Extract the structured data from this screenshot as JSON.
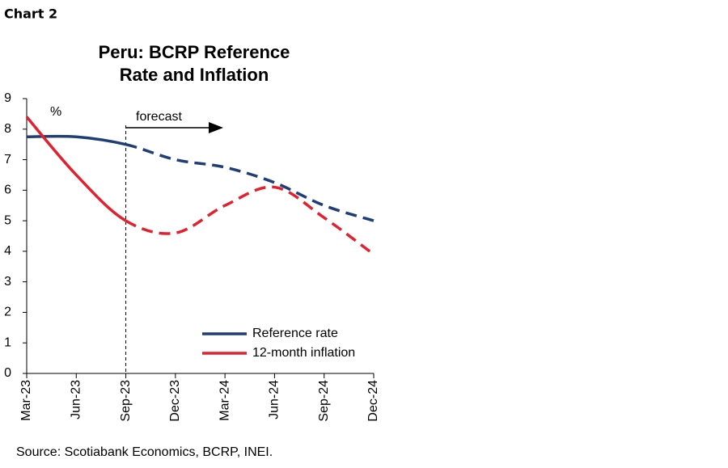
{
  "header": "Chart 2",
  "source": "Source: Scotiabank Economics, BCRP, INEI.",
  "chart_data": {
    "type": "line",
    "title": [
      "Peru: BCRP Reference",
      "Rate and Inflation"
    ],
    "y_unit": "%",
    "forecast_label": "forecast",
    "forecast_start": "Sep-23",
    "categories": [
      "Mar-23",
      "Jun-23",
      "Sep-23",
      "Dec-23",
      "Mar-24",
      "Jun-24",
      "Sep-24",
      "Dec-24"
    ],
    "series": [
      {
        "name": "Reference rate",
        "color": "#1f3e77",
        "values": [
          7.75,
          7.75,
          7.5,
          7.0,
          6.75,
          6.25,
          5.5,
          5.0
        ]
      },
      {
        "name": "12-month inflation",
        "color": "#e3202e",
        "values": [
          8.4,
          6.5,
          5.0,
          4.6,
          5.5,
          6.1,
          5.1,
          3.9
        ]
      }
    ],
    "ylim": [
      0,
      9
    ],
    "yticks": [
      0,
      1,
      2,
      3,
      4,
      5,
      6,
      7,
      8,
      9
    ]
  }
}
